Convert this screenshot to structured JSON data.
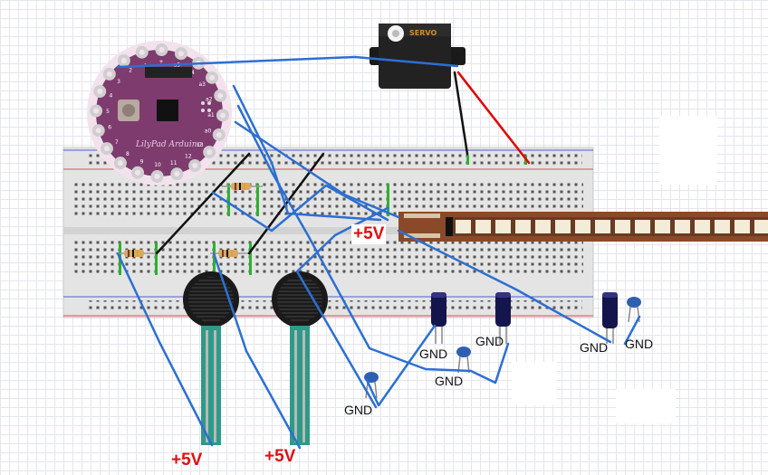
{
  "labels": {
    "plus5v_flex": "+5V",
    "plus5v_fsr_left": "+5V",
    "plus5v_fsr_right": "+5V",
    "gnd_cap_left": "GND",
    "gnd_cap_mid": "GND",
    "gnd_elec_1": "GND",
    "gnd_elec_2": "GND",
    "gnd_elec_3": "GND",
    "gnd_cap_right": "GND"
  },
  "servo": {
    "label": "SERVO"
  },
  "lilypad": {
    "logo": "LilyPad Arduino",
    "pins": [
      "a5",
      "a4",
      "a3",
      "a2",
      "a1",
      "a0",
      "13",
      "12",
      "11",
      "10",
      "9",
      "8",
      "7",
      "6",
      "5",
      "4",
      "3",
      "2",
      "-",
      "+"
    ]
  },
  "colors": {
    "wire_signal": "#2d6fd1",
    "wire_ground": "#111111",
    "wire_power": "#e00000",
    "lilypad": "#7e3b6e",
    "breadboard": "#e6e6e6",
    "rail_red": "#e05050",
    "rail_blue": "#5060d0"
  }
}
